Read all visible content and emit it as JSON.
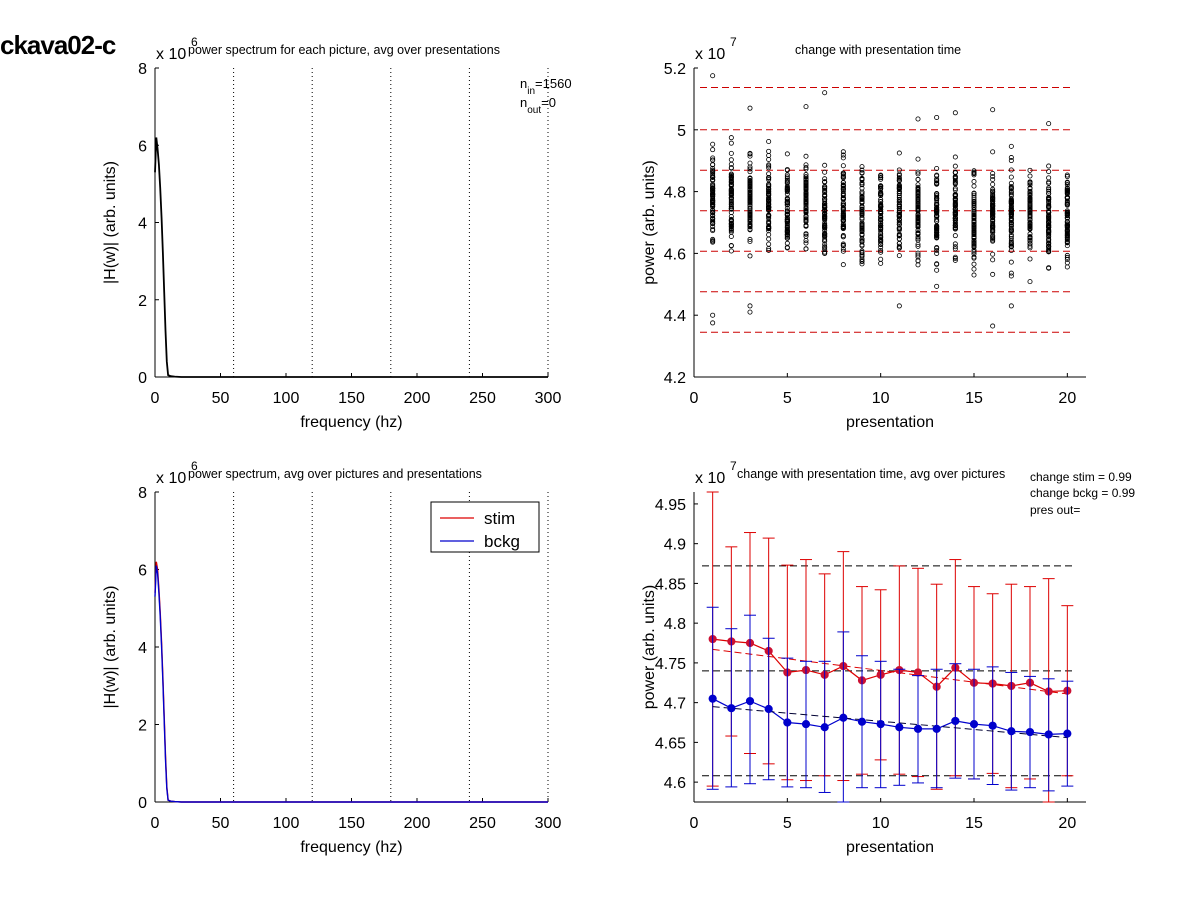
{
  "figure_title": "ckava02-c",
  "colors": {
    "stim": "#dd0000",
    "bckg": "#0000cc",
    "stim_marker": "#cc1133",
    "band": "#cc0000",
    "axis": "#000000"
  },
  "chart_data": [
    {
      "id": "tl",
      "type": "line",
      "title": "power spectrum for each picture, avg over presentations",
      "xlabel": "frequency (hz)",
      "ylabel": "|H(w)| (arb. units)",
      "exponent_label": "x 10",
      "exponent": "6",
      "xlim": [
        0,
        300
      ],
      "ylim": [
        0,
        8
      ],
      "xticks": [
        "0",
        "50",
        "100",
        "150",
        "200",
        "250",
        "300"
      ],
      "yticks": [
        "0",
        "2",
        "4",
        "6",
        "8"
      ],
      "vlines": [
        60,
        120,
        180,
        240,
        300
      ],
      "annotation": {
        "n_in_label": "n",
        "n_in_sub": "in",
        "n_in_value": "=1560",
        "n_out_label": "n",
        "n_out_sub": "out",
        "n_out_value": "=0"
      },
      "series": [
        {
          "color": "#000000",
          "x": [
            0,
            1,
            2,
            3,
            4,
            5,
            6,
            7,
            8,
            9,
            10,
            12,
            15,
            20,
            300
          ],
          "y": [
            5.3,
            6.2,
            5.9,
            5.5,
            4.9,
            4.1,
            3.2,
            2.2,
            1.2,
            0.4,
            0.05,
            0.02,
            0.01,
            0.0,
            0.0
          ]
        }
      ]
    },
    {
      "id": "tr",
      "type": "scatter",
      "title": "change with presentation time",
      "xlabel": "presentation",
      "ylabel": "power (arb. units)",
      "exponent_label": "x 10",
      "exponent": "7",
      "xlim": [
        0,
        21
      ],
      "ylim": [
        4.2,
        5.2
      ],
      "xticks": [
        "0",
        "5",
        "10",
        "15",
        "20"
      ],
      "yticks": [
        "4.2",
        "4.4",
        "4.6",
        "4.8",
        "5",
        "5.2"
      ],
      "hbands": [
        4.345,
        4.476,
        4.607,
        4.738,
        4.869,
        5.0,
        5.137
      ],
      "x_range": [
        1,
        20
      ],
      "points_per_presentation": 78,
      "mean_by_presentation": [
        4.78,
        4.777,
        4.775,
        4.765,
        4.738,
        4.741,
        4.735,
        4.746,
        4.728,
        4.735,
        4.741,
        4.738,
        4.72,
        4.744,
        4.725,
        4.724,
        4.721,
        4.725,
        4.714,
        4.715
      ],
      "spread": 0.13,
      "outliers": [
        {
          "x": 1,
          "y": 5.175
        },
        {
          "x": 1,
          "y": 4.375
        },
        {
          "x": 1,
          "y": 4.4
        },
        {
          "x": 3,
          "y": 5.07
        },
        {
          "x": 3,
          "y": 4.41
        },
        {
          "x": 3,
          "y": 4.43
        },
        {
          "x": 6,
          "y": 5.075
        },
        {
          "x": 7,
          "y": 5.12
        },
        {
          "x": 11,
          "y": 4.43
        },
        {
          "x": 12,
          "y": 5.035
        },
        {
          "x": 13,
          "y": 5.04
        },
        {
          "x": 14,
          "y": 5.055
        },
        {
          "x": 16,
          "y": 5.065
        },
        {
          "x": 16,
          "y": 4.365
        },
        {
          "x": 19,
          "y": 5.02
        },
        {
          "x": 17,
          "y": 4.43
        }
      ]
    },
    {
      "id": "bl",
      "type": "line",
      "title": "power spectrum, avg over pictures and presentations",
      "xlabel": "frequency (hz)",
      "ylabel": "|H(w)| (arb. units)",
      "exponent_label": "x 10",
      "exponent": "6",
      "xlim": [
        0,
        300
      ],
      "ylim": [
        0,
        8
      ],
      "xticks": [
        "0",
        "50",
        "100",
        "150",
        "200",
        "250",
        "300"
      ],
      "yticks": [
        "0",
        "2",
        "4",
        "6",
        "8"
      ],
      "vlines": [
        60,
        120,
        180,
        240,
        300
      ],
      "legend_position": "top-right",
      "series": [
        {
          "name": "stim",
          "color": "#dd0000",
          "x": [
            0,
            1,
            2,
            3,
            4,
            5,
            6,
            7,
            8,
            9,
            10,
            12,
            15,
            20,
            300
          ],
          "y": [
            5.4,
            6.2,
            6.0,
            5.5,
            4.9,
            4.1,
            3.2,
            2.2,
            1.2,
            0.4,
            0.05,
            0.02,
            0.01,
            0.0,
            0.0
          ]
        },
        {
          "name": "bckg",
          "color": "#0000cc",
          "x": [
            0,
            1,
            2,
            3,
            4,
            5,
            6,
            7,
            8,
            9,
            10,
            12,
            15,
            20,
            300
          ],
          "y": [
            5.3,
            6.1,
            5.9,
            5.4,
            4.8,
            4.0,
            3.1,
            2.1,
            1.1,
            0.35,
            0.05,
            0.02,
            0.01,
            0.0,
            0.0
          ]
        }
      ]
    },
    {
      "id": "br",
      "type": "line",
      "title": "change with presentation time, avg over pictures",
      "xlabel": "presentation",
      "ylabel": "power (arb. units)",
      "exponent_label": "x 10",
      "exponent": "7",
      "xlim": [
        0,
        21
      ],
      "ylim": [
        4.575,
        4.965
      ],
      "xticks": [
        "0",
        "5",
        "10",
        "15",
        "20"
      ],
      "yticks": [
        "4.6",
        "4.65",
        "4.7",
        "4.75",
        "4.8",
        "4.85",
        "4.9",
        "4.95"
      ],
      "hbands": [
        4.608,
        4.74,
        4.872
      ],
      "annotation": {
        "change_stim": "change stim = 0.99",
        "change_bckg": "change bckg = 0.99",
        "pres_out": "pres out="
      },
      "x": [
        1,
        2,
        3,
        4,
        5,
        6,
        7,
        8,
        9,
        10,
        11,
        12,
        13,
        14,
        15,
        16,
        17,
        18,
        19,
        20
      ],
      "series": [
        {
          "name": "stim",
          "color": "#dd0000",
          "values": [
            4.78,
            4.777,
            4.775,
            4.765,
            4.738,
            4.741,
            4.735,
            4.746,
            4.728,
            4.735,
            4.741,
            4.738,
            4.72,
            4.744,
            4.725,
            4.724,
            4.721,
            4.725,
            4.714,
            4.715
          ],
          "err_hi": [
            4.965,
            4.896,
            4.914,
            4.907,
            4.873,
            4.88,
            4.862,
            4.89,
            4.846,
            4.842,
            4.872,
            4.869,
            4.849,
            4.88,
            4.846,
            4.837,
            4.849,
            4.846,
            4.856,
            4.822
          ],
          "err_lo": [
            4.595,
            4.658,
            4.636,
            4.623,
            4.603,
            4.602,
            4.608,
            4.602,
            4.61,
            4.628,
            4.61,
            4.607,
            4.591,
            4.608,
            4.604,
            4.611,
            4.593,
            4.604,
            4.572,
            4.608
          ],
          "trend": [
            4.767,
            4.711
          ]
        },
        {
          "name": "bckg",
          "color": "#0000cc",
          "values": [
            4.705,
            4.693,
            4.702,
            4.692,
            4.675,
            4.673,
            4.669,
            4.681,
            4.676,
            4.673,
            4.669,
            4.667,
            4.667,
            4.677,
            4.673,
            4.671,
            4.664,
            4.663,
            4.66,
            4.661
          ],
          "err_hi": [
            4.82,
            4.793,
            4.81,
            4.781,
            4.756,
            4.752,
            4.752,
            4.789,
            4.759,
            4.752,
            4.742,
            4.734,
            4.742,
            4.749,
            4.742,
            4.745,
            4.738,
            4.733,
            4.73,
            4.727
          ],
          "err_lo": [
            4.591,
            4.594,
            4.598,
            4.603,
            4.594,
            4.593,
            4.587,
            4.573,
            4.593,
            4.593,
            4.596,
            4.599,
            4.593,
            4.605,
            4.604,
            4.597,
            4.59,
            4.593,
            4.589,
            4.595
          ],
          "trend": [
            4.695,
            4.656
          ]
        }
      ]
    }
  ]
}
